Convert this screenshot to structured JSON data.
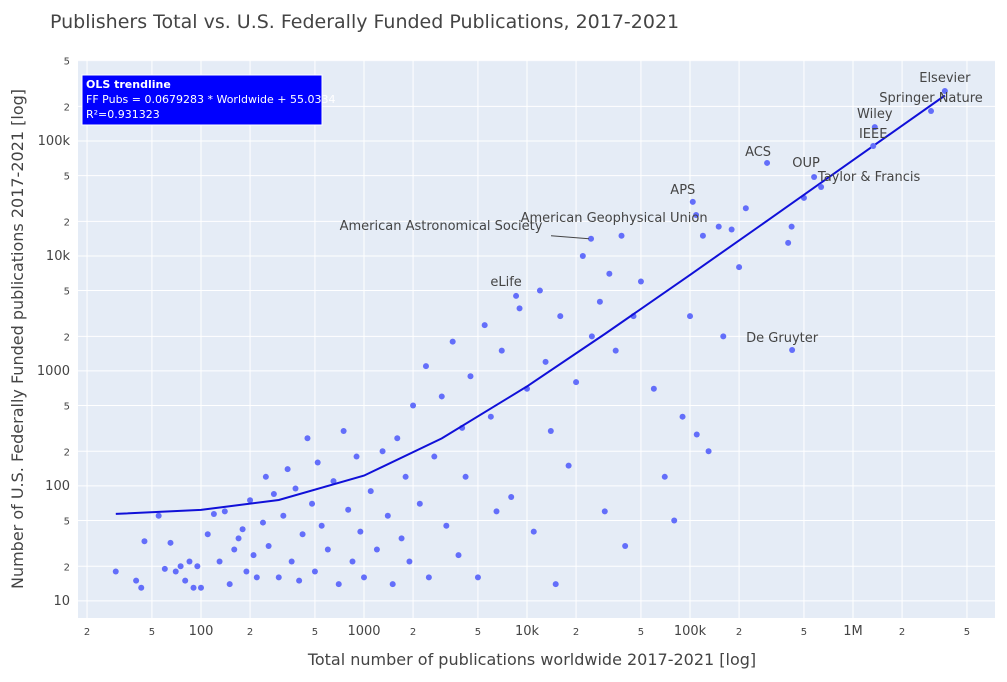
{
  "chart_data": {
    "type": "scatter",
    "title": "Publishers Total vs. U.S. Federally Funded Publications, 2017-2021",
    "x_label": "Total number of publications worldwide 2017-2021 [log]",
    "y_label": "Number of U.S. Federally Funded publications 2017-2021 [log]",
    "x_log": true,
    "y_log": true,
    "grid": true,
    "color": "#636efa",
    "xlim": [
      17.6,
      7430000
    ],
    "ylim": [
      7.1,
      506000
    ],
    "xticks": [
      {
        "value": 20,
        "label": "2"
      },
      {
        "value": 50,
        "label": "5"
      },
      100,
      {
        "value": 200,
        "label": "2"
      },
      {
        "value": 500,
        "label": "5"
      },
      1000,
      {
        "value": 2000,
        "label": "2"
      },
      {
        "value": 5000,
        "label": "5"
      },
      {
        "value": 10000,
        "label": "10k"
      },
      {
        "value": 20000,
        "label": "2"
      },
      {
        "value": 50000,
        "label": "5"
      },
      {
        "value": 100000,
        "label": "100k"
      },
      {
        "value": 200000,
        "label": "2"
      },
      {
        "value": 500000,
        "label": "5"
      },
      {
        "value": 1000000,
        "label": "1M"
      },
      {
        "value": 2000000,
        "label": "2"
      },
      {
        "value": 5000000,
        "label": "5"
      }
    ],
    "yticks": [
      10,
      {
        "value": 20,
        "label": "2"
      },
      {
        "value": 50,
        "label": "5"
      },
      100,
      {
        "value": 200,
        "label": "2"
      },
      {
        "value": 500,
        "label": "5"
      },
      1000,
      {
        "value": 2000,
        "label": "2"
      },
      {
        "value": 5000,
        "label": "5"
      },
      {
        "value": 10000,
        "label": "10k"
      },
      {
        "value": 20000,
        "label": "2"
      },
      {
        "value": 50000,
        "label": "5"
      },
      {
        "value": 100000,
        "label": "100k"
      },
      {
        "value": 200000,
        "label": "2"
      },
      {
        "value": 500000,
        "label": "5"
      }
    ],
    "x": [
      30,
      40,
      43,
      45,
      55,
      60,
      65,
      70,
      75,
      80,
      85,
      90,
      95,
      100,
      110,
      120,
      130,
      140,
      150,
      160,
      170,
      180,
      190,
      200,
      210,
      220,
      240,
      250,
      260,
      280,
      300,
      320,
      340,
      360,
      380,
      400,
      420,
      450,
      480,
      500,
      520,
      550,
      600,
      650,
      700,
      750,
      800,
      850,
      900,
      950,
      1000,
      1100,
      1200,
      1300,
      1400,
      1500,
      1600,
      1700,
      1800,
      1900,
      2000,
      2200,
      2400,
      2500,
      2700,
      3000,
      3200,
      3500,
      3800,
      4000,
      4200,
      4500,
      5000,
      5500,
      6000,
      6500,
      7000,
      8000,
      9000,
      10000,
      11000,
      12000,
      13000,
      14000,
      15000,
      16000,
      18000,
      20000,
      22000,
      25000,
      28000,
      30000,
      32000,
      35000,
      38000,
      40000,
      45000,
      50000,
      60000,
      70000,
      80000,
      90000,
      100000,
      110000,
      120000,
      130000,
      150000,
      160000,
      180000,
      200000,
      220000,
      400000,
      420000,
      500000
    ],
    "values": [
      18,
      15,
      13,
      33,
      55,
      19,
      32,
      18,
      20,
      15,
      22,
      13,
      20,
      13,
      38,
      57,
      22,
      60,
      14,
      28,
      35,
      42,
      18,
      75,
      25,
      16,
      48,
      120,
      30,
      85,
      16,
      55,
      140,
      22,
      95,
      15,
      38,
      260,
      70,
      18,
      160,
      45,
      28,
      110,
      14,
      300,
      62,
      22,
      180,
      40,
      16,
      90,
      28,
      200,
      55,
      14,
      260,
      35,
      120,
      22,
      500,
      70,
      1100,
      16,
      180,
      600,
      45,
      1800,
      25,
      320,
      120,
      900,
      16,
      2500,
      400,
      60,
      1500,
      80,
      3500,
      700,
      40,
      5000,
      1200,
      300,
      14,
      3000,
      150,
      800,
      10000,
      2000,
      4000,
      60,
      7000,
      1500,
      15000,
      30,
      3000,
      6000,
      700,
      120,
      50,
      400,
      3000,
      280,
      15000,
      200,
      18000,
      2000,
      17000,
      8000,
      26000,
      13000,
      18000,
      32000
    ],
    "annotations": [
      {
        "text": "Elsevier",
        "x": 3660000,
        "y": 272000
      },
      {
        "text": "Springer Nature",
        "x": 3010000,
        "y": 182000
      },
      {
        "text": "Wiley",
        "x": 1360000,
        "y": 132000
      },
      {
        "text": "IEEE",
        "x": 1330000,
        "y": 90500
      },
      {
        "text": "ACS",
        "x": 297000,
        "y": 64400
      },
      {
        "text": "OUP",
        "x": 577000,
        "y": 48600
      },
      {
        "text": "Taylor & Francis",
        "x": 637000,
        "y": 39800
      },
      {
        "text": "APS",
        "x": 104000,
        "y": 29500
      },
      {
        "text": "American Geophysical Union",
        "x": 109000,
        "y": 22700
      },
      {
        "text": "American Astronomical Society",
        "x": 24700,
        "y": 14100
      },
      {
        "text": "eLife",
        "x": 8570,
        "y": 4490
      },
      {
        "text": "De Gruyter",
        "x": 423000,
        "y": 1520
      }
    ],
    "trendline": {
      "color": "#1010d8",
      "x": [
        30,
        100,
        300,
        1000,
        3000,
        10000,
        30000,
        100000,
        300000,
        1000000,
        3660000
      ],
      "values": [
        57.07,
        61.8,
        75.4,
        123,
        259,
        734,
        2093,
        6848,
        20433,
        67983,
        248680
      ]
    },
    "trendline_box": [
      "OLS trendline",
      "FF Pubs = 0.0679283 * Worldwide + 55.0334",
      "R²=0.931323"
    ]
  }
}
